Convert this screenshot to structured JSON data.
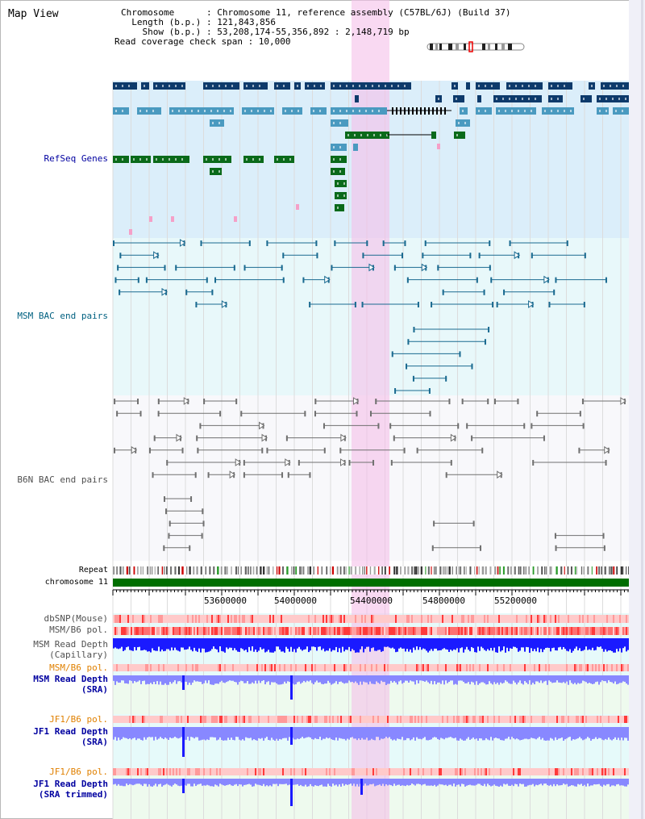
{
  "panel": {
    "title": "Map View"
  },
  "header": {
    "chromosome": "Chromosome      : Chromosome 11, reference assembly (C57BL/6J) (Build 37)",
    "length": "  Length (b.p.) : 121,843,856",
    "show": "    Show (b.p.) : 53,208,174-55,356,892 : 2,148,719 bp",
    "coverage": "Read coverage check span : 10,000"
  },
  "tracks": {
    "refseq": "RefSeq Genes",
    "msm_bac": "MSM BAC end pairs",
    "b6n_bac": "B6N BAC end pairs",
    "repeat": "Repeat",
    "chromosome": "chromosome 11",
    "dbsnp": "dbSNP(Mouse)",
    "msm_b6_pol_1": "MSM/B6 pol.",
    "msm_depth_cap_1": "MSM Read Depth",
    "msm_depth_cap_2": "(Capillary)",
    "msm_b6_pol_2": "MSM/B6 pol.",
    "msm_depth_sra_1": "MSM Read Depth",
    "msm_depth_sra_2": "(SRA)",
    "jf1_b6_pol_1": "JF1/B6 pol.",
    "jf1_depth_sra_1": "JF1 Read Depth",
    "jf1_depth_sra_2": "(SRA)",
    "jf1_b6_pol_2": "JF1/B6 pol.",
    "jf1_depth_trim_1": "JF1 Read Depth",
    "jf1_depth_trim_2": "(SRA trimmed)"
  },
  "axis": {
    "ticks": [
      "53600000",
      "54000000",
      "54400000",
      "54800000",
      "55200000"
    ]
  },
  "colors": {
    "refseq_bg": "#dbeefa",
    "msm_bg": "#e8f8fa",
    "b6n_bg": "#f8f8fb",
    "highlight": "#f5c0ea",
    "gene_dark": "#0d3a6b",
    "gene_mid": "#4a9ac0",
    "gene_green": "#0a6a1a",
    "msm_pair": "#1a6a90",
    "b6n_pair": "#707070",
    "chrom_bar": "#006e00",
    "depth_dark": "#1a1aff",
    "depth_light": "#8888ff",
    "label_blue": "#0000a0",
    "label_teal": "#006080",
    "label_orange": "#e08000"
  }
}
